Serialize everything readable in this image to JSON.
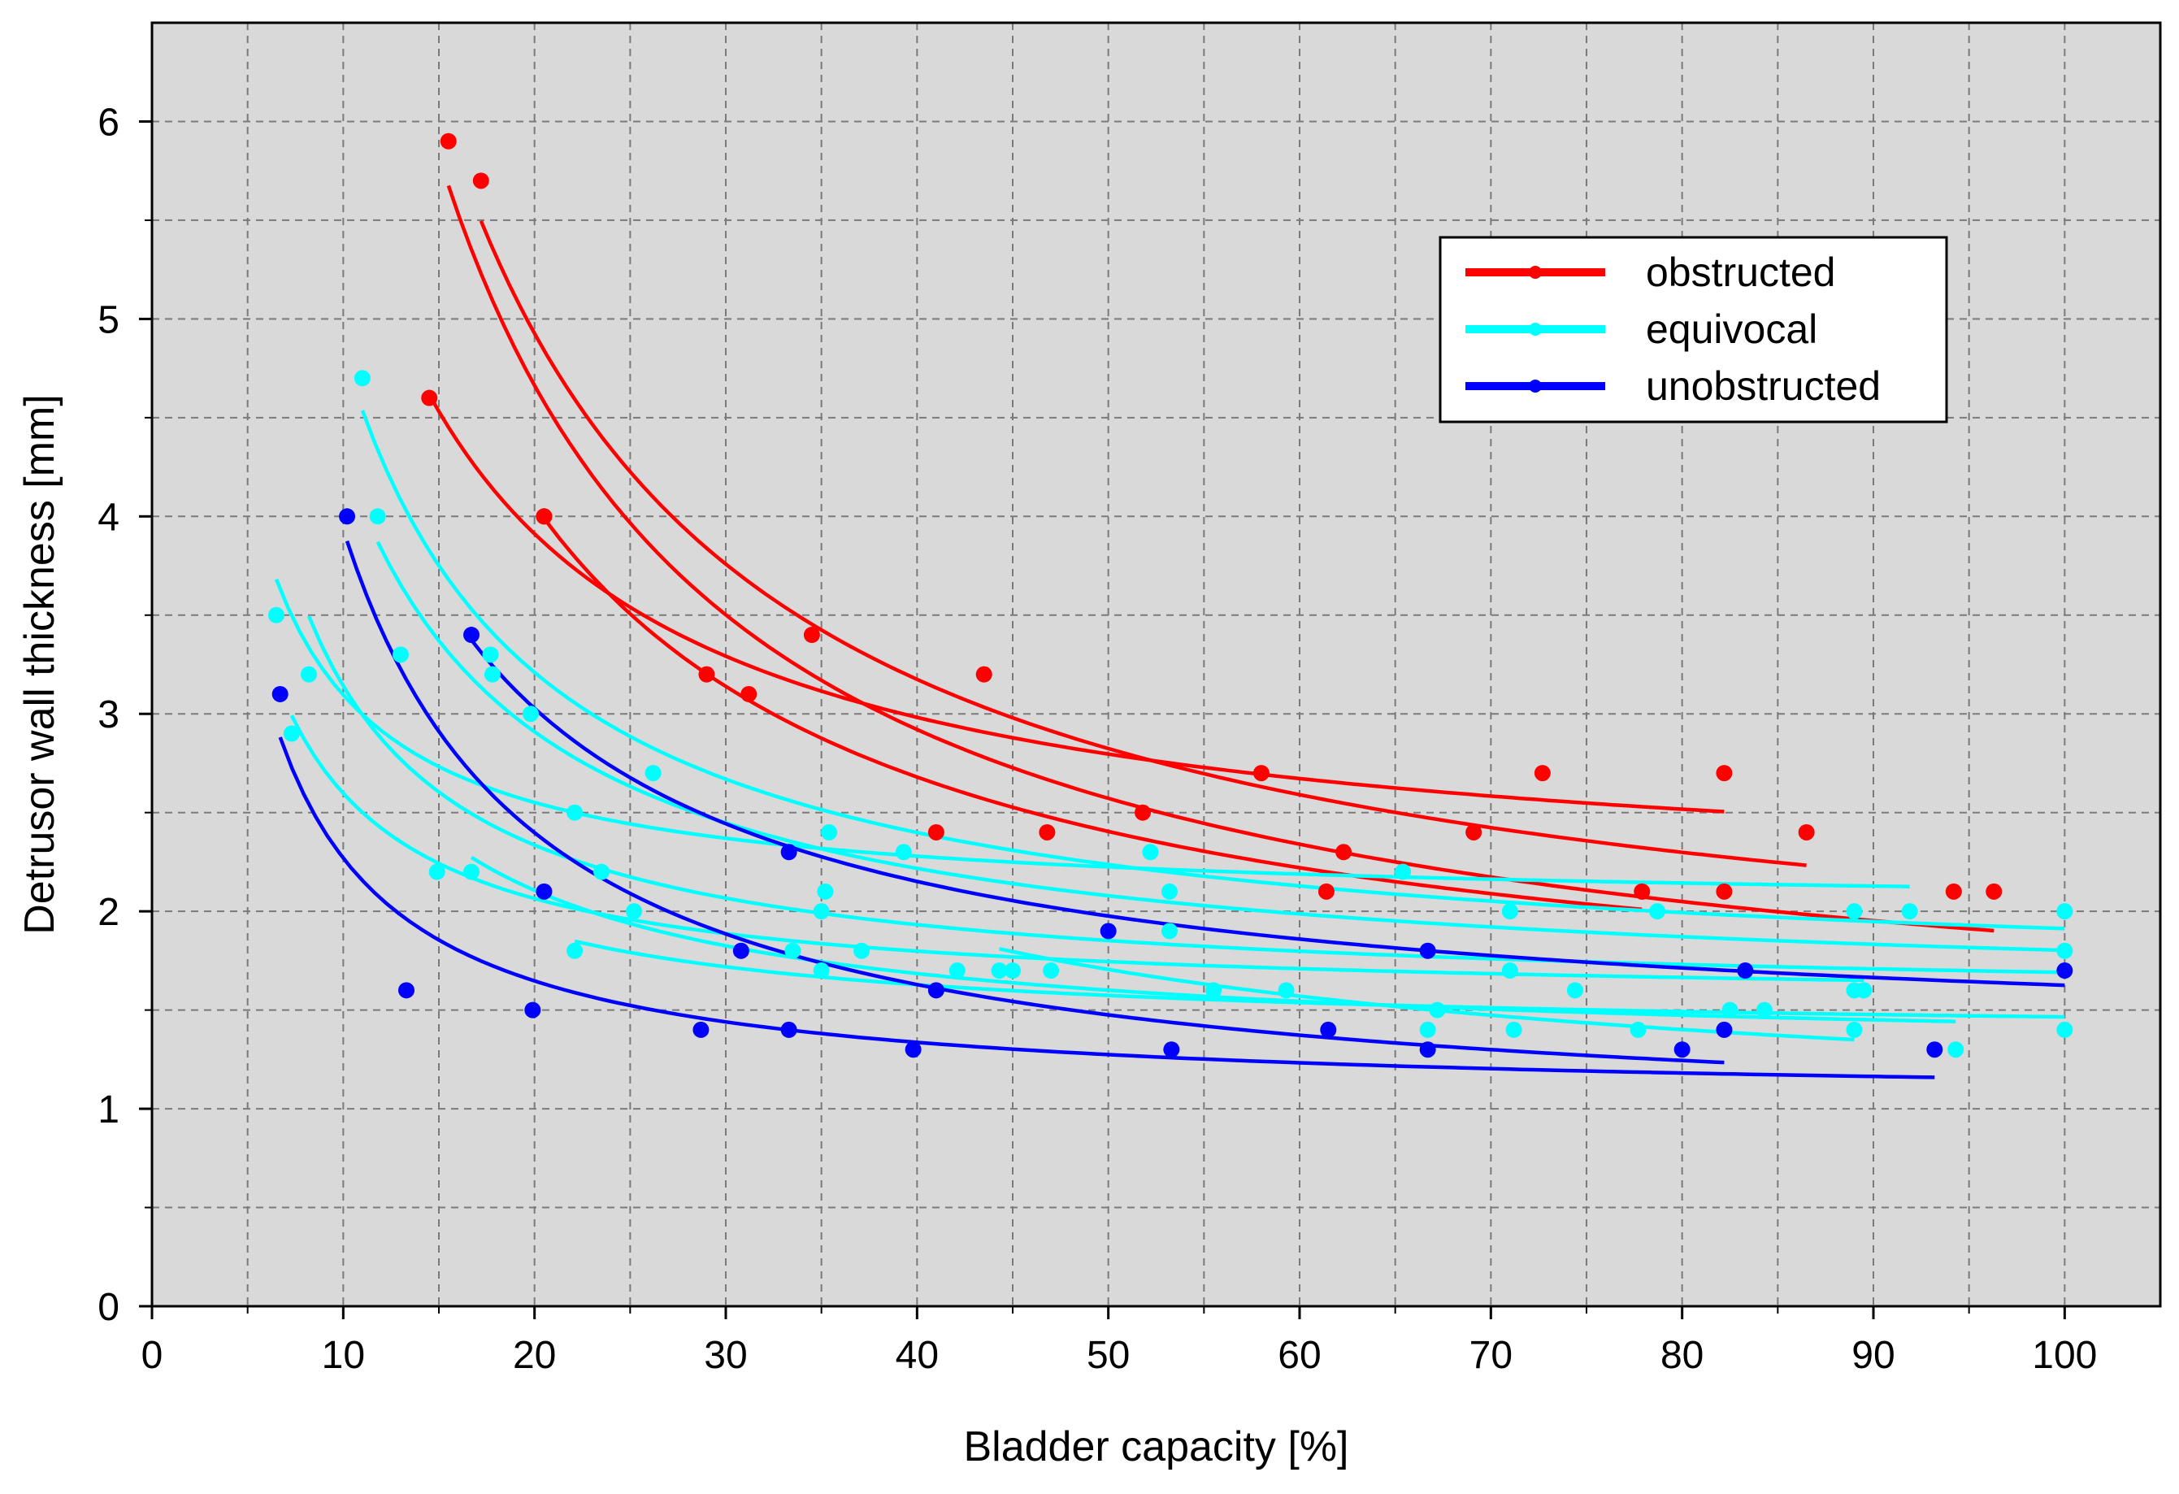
{
  "chart_data": {
    "type": "scatter",
    "title": "",
    "xlabel": "Bladder capacity [%]",
    "ylabel": "Detrusor wall thickness [mm]",
    "xlim": [
      0,
      105
    ],
    "ylim": [
      0,
      6.5
    ],
    "xticks": [
      0,
      10,
      20,
      30,
      40,
      50,
      60,
      70,
      80,
      90,
      100
    ],
    "xtick_labels": [
      "0",
      "10",
      "20",
      "30",
      "40",
      "50",
      "60",
      "70",
      "80",
      "90",
      "100"
    ],
    "yticks": [
      0,
      1,
      2,
      3,
      4,
      5,
      6
    ],
    "ytick_labels": [
      "0",
      "1",
      "2",
      "3",
      "4",
      "5",
      "6"
    ],
    "grid": true,
    "plot_background": "#d9d9d9",
    "legend_position": "top-right",
    "legend": [
      {
        "label": "obstructed",
        "color": "#ff0000"
      },
      {
        "label": "equivocal",
        "color": "#00ffff"
      },
      {
        "label": "unobstructed",
        "color": "#0000ff"
      }
    ],
    "series": [
      {
        "name": "obstructed",
        "color": "#ff0000",
        "points": [
          [
            15.5,
            5.9
          ],
          [
            29,
            3.2
          ],
          [
            34.5,
            3.4
          ],
          [
            41,
            2.4
          ],
          [
            51.8,
            2.5
          ],
          [
            62.3,
            2.3
          ],
          [
            82.2,
            2.1
          ],
          [
            94.2,
            2.1
          ],
          [
            96.3,
            2.1
          ]
        ]
      },
      {
        "name": "obstructed",
        "color": "#ff0000",
        "points": [
          [
            17.2,
            5.7
          ],
          [
            31.2,
            3.1
          ],
          [
            43.5,
            3.2
          ],
          [
            58,
            2.7
          ],
          [
            69.1,
            2.4
          ],
          [
            86.5,
            2.4
          ]
        ]
      },
      {
        "name": "obstructed",
        "color": "#ff0000",
        "points": [
          [
            14.5,
            4.6
          ],
          [
            20.5,
            4.0
          ],
          [
            46.8,
            2.4
          ],
          [
            72.7,
            2.7
          ],
          [
            82.2,
            2.7
          ]
        ]
      },
      {
        "name": "obstructed",
        "color": "#ff0000",
        "points": [
          [
            20.5,
            4.0
          ],
          [
            61.4,
            2.1
          ],
          [
            77.9,
            2.1
          ]
        ]
      },
      {
        "name": "equivocal",
        "color": "#00ffff",
        "points": [
          [
            11,
            4.7
          ],
          [
            19.8,
            3.0
          ],
          [
            26.2,
            2.7
          ],
          [
            35.4,
            2.4
          ],
          [
            52.2,
            2.3
          ],
          [
            65.4,
            2.2
          ],
          [
            100,
            2.0
          ]
        ]
      },
      {
        "name": "equivocal",
        "color": "#00ffff",
        "points": [
          [
            11.8,
            4.0
          ],
          [
            17.7,
            3.3
          ],
          [
            23.5,
            2.2
          ],
          [
            35.2,
            2.1
          ],
          [
            53.2,
            2.1
          ],
          [
            78.7,
            2.0
          ],
          [
            100,
            2.0
          ]
        ]
      },
      {
        "name": "equivocal",
        "color": "#00ffff",
        "points": [
          [
            6.5,
            3.5
          ],
          [
            17.8,
            3.2
          ],
          [
            39.3,
            2.3
          ],
          [
            71,
            2.0
          ],
          [
            89,
            2.0
          ],
          [
            91.9,
            2.0
          ]
        ]
      },
      {
        "name": "equivocal",
        "color": "#00ffff",
        "points": [
          [
            8.2,
            3.2
          ],
          [
            13,
            3.3
          ],
          [
            35,
            2.0
          ],
          [
            45,
            1.7
          ],
          [
            71,
            1.7
          ],
          [
            89,
            1.6
          ],
          [
            100,
            1.8
          ]
        ]
      },
      {
        "name": "equivocal",
        "color": "#00ffff",
        "points": [
          [
            7.3,
            2.9
          ],
          [
            14.9,
            2.2
          ],
          [
            22.1,
            2.5
          ],
          [
            33.5,
            1.8
          ],
          [
            47,
            1.7
          ],
          [
            59.3,
            1.6
          ],
          [
            74.4,
            1.6
          ],
          [
            89.5,
            1.6
          ]
        ]
      },
      {
        "name": "equivocal",
        "color": "#00ffff",
        "points": [
          [
            16.7,
            2.2
          ],
          [
            25.2,
            2.0
          ],
          [
            37.1,
            1.8
          ],
          [
            55.5,
            1.6
          ],
          [
            82.5,
            1.5
          ],
          [
            94.3,
            1.3
          ]
        ]
      },
      {
        "name": "equivocal",
        "color": "#00ffff",
        "points": [
          [
            22.1,
            1.8
          ],
          [
            35,
            1.7
          ],
          [
            42.1,
            1.7
          ],
          [
            67.2,
            1.5
          ],
          [
            84.3,
            1.5
          ],
          [
            100,
            1.4
          ]
        ]
      },
      {
        "name": "equivocal",
        "color": "#00ffff",
        "points": [
          [
            44.3,
            1.7
          ],
          [
            53.2,
            1.9
          ],
          [
            66.7,
            1.4
          ],
          [
            71.2,
            1.4
          ],
          [
            77.7,
            1.4
          ],
          [
            89,
            1.4
          ]
        ]
      },
      {
        "name": "unobstructed",
        "color": "#0000ff",
        "points": [
          [
            16.7,
            3.4
          ],
          [
            33.3,
            2.3
          ],
          [
            50,
            1.9
          ],
          [
            66.7,
            1.8
          ],
          [
            83.3,
            1.7
          ],
          [
            100,
            1.7
          ]
        ]
      },
      {
        "name": "unobstructed",
        "color": "#0000ff",
        "points": [
          [
            10.2,
            4.0
          ],
          [
            20.5,
            2.1
          ],
          [
            30.8,
            1.8
          ],
          [
            41,
            1.6
          ],
          [
            61.5,
            1.4
          ],
          [
            82.2,
            1.4
          ]
        ]
      },
      {
        "name": "unobstructed",
        "color": "#0000ff",
        "points": [
          [
            6.7,
            3.1
          ],
          [
            13.3,
            1.6
          ],
          [
            19.9,
            1.5
          ],
          [
            28.7,
            1.4
          ],
          [
            33.3,
            1.4
          ],
          [
            39.8,
            1.3
          ],
          [
            53.3,
            1.3
          ],
          [
            66.7,
            1.3
          ],
          [
            80,
            1.3
          ],
          [
            93.2,
            1.3
          ]
        ]
      }
    ]
  }
}
